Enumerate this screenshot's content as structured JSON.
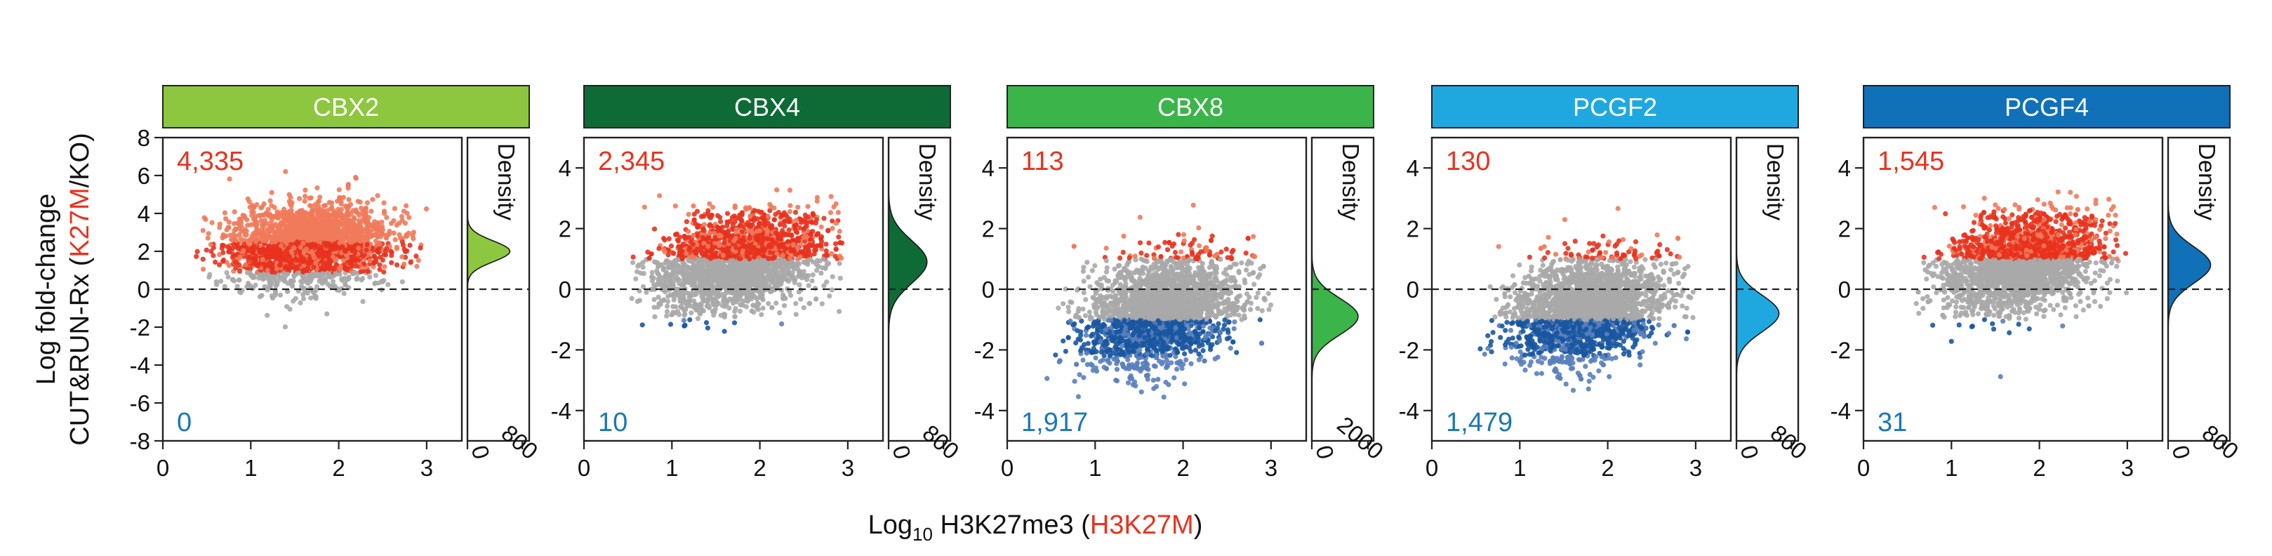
{
  "figure": {
    "ylabel_parts": [
      "Log",
      " fold-change",
      "CUT&RUN-Rx (",
      "K27M",
      "/KO)"
    ],
    "xlabel_parts": [
      "Log",
      "10",
      " H3K27me3 (",
      "H3K27M",
      ")"
    ],
    "density_label": "Density"
  },
  "colors": {
    "up": "#e8321e",
    "up_light": "#f07a5a",
    "down": "#1a56a0",
    "down_light": "#5a7fbd",
    "neutral": "#a8a8a8",
    "up_count_text": "#e8321e",
    "down_count_text": "#1a78b4"
  },
  "chart_data": [
    {
      "type": "scatter",
      "title": "CBX2",
      "title_color": "#8dc63f",
      "title_text_color": "#ffffff",
      "density_color": "#8dc63f",
      "up_count": "4,335",
      "down_count": "0",
      "xlim": [
        0,
        3.4
      ],
      "ylim": [
        -8,
        8
      ],
      "xticks": [
        "0",
        "1",
        "2",
        "3"
      ],
      "xtick_values": [
        0,
        1,
        2,
        3
      ],
      "yticks": [
        "8",
        "6",
        "4",
        "2",
        "0",
        "-2",
        "-4",
        "-6",
        "-8"
      ],
      "ytick_values": [
        8,
        6,
        4,
        2,
        0,
        -2,
        -4,
        -6,
        -8
      ],
      "density_ticks": [
        "0",
        "800"
      ],
      "density_max": 900,
      "density_curve": {
        "mean": 2.0,
        "sd": 0.55,
        "peak": 620
      },
      "point_cloud": {
        "x_center": 1.65,
        "x_spread": 0.45,
        "y_center": 2.3,
        "y_spread": 1.05,
        "x_min": 0.35,
        "x_max": 3.0,
        "slope": 0.25,
        "up_threshold": 0.9,
        "down_threshold": -99,
        "n": 2400
      }
    },
    {
      "type": "scatter",
      "title": "CBX4",
      "title_color": "#0e6b36",
      "title_text_color": "#ffffff",
      "density_color": "#0e6b36",
      "up_count": "2,345",
      "down_count": "10",
      "xlim": [
        0,
        3.4
      ],
      "ylim": [
        -5,
        5
      ],
      "xticks": [
        "0",
        "1",
        "2",
        "3"
      ],
      "xtick_values": [
        0,
        1,
        2,
        3
      ],
      "yticks": [
        "4",
        "2",
        "0",
        "-2",
        "-4"
      ],
      "ytick_values": [
        4,
        2,
        0,
        -2,
        -4
      ],
      "density_ticks": [
        "0",
        "800"
      ],
      "density_max": 900,
      "density_curve": {
        "mean": 0.9,
        "sd": 0.7,
        "peak": 560
      },
      "point_cloud": {
        "x_center": 1.75,
        "x_spread": 0.45,
        "y_center": 0.9,
        "y_spread": 0.75,
        "x_min": 0.5,
        "x_max": 3.0,
        "slope": 0.55,
        "up_threshold": 1.0,
        "down_threshold": -1.0,
        "n": 2600
      }
    },
    {
      "type": "scatter",
      "title": "CBX8",
      "title_color": "#3bb44a",
      "title_text_color": "#ffffff",
      "density_color": "#3bb44a",
      "up_count": "113",
      "down_count": "1,917",
      "xlim": [
        0,
        3.4
      ],
      "ylim": [
        -5,
        5
      ],
      "xticks": [
        "0",
        "1",
        "2",
        "3"
      ],
      "xtick_values": [
        0,
        1,
        2,
        3
      ],
      "yticks": [
        "4",
        "2",
        "0",
        "-2",
        "-4"
      ],
      "ytick_values": [
        4,
        2,
        0,
        -2,
        -4
      ],
      "density_ticks": [
        "0",
        "2000"
      ],
      "density_max": 2200,
      "density_curve": {
        "mean": -0.9,
        "sd": 0.6,
        "peak": 1650
      },
      "point_cloud": {
        "x_center": 1.75,
        "x_spread": 0.42,
        "y_center": -0.7,
        "y_spread": 0.85,
        "x_min": 0.45,
        "x_max": 3.0,
        "slope": 0.6,
        "up_threshold": 1.0,
        "down_threshold": -1.0,
        "n": 2600
      }
    },
    {
      "type": "scatter",
      "title": "PCGF2",
      "title_color": "#1fa8e0",
      "title_text_color": "#ffffff",
      "density_color": "#1fa8e0",
      "up_count": "130",
      "down_count": "1,479",
      "xlim": [
        0,
        3.4
      ],
      "ylim": [
        -5,
        5
      ],
      "xticks": [
        "0",
        "1",
        "2",
        "3"
      ],
      "xtick_values": [
        0,
        1,
        2,
        3
      ],
      "yticks": [
        "4",
        "2",
        "0",
        "-2",
        "-4"
      ],
      "ytick_values": [
        4,
        2,
        0,
        -2,
        -4
      ],
      "density_ticks": [
        "0",
        "800"
      ],
      "density_max": 900,
      "density_curve": {
        "mean": -0.8,
        "sd": 0.6,
        "peak": 620
      },
      "point_cloud": {
        "x_center": 1.75,
        "x_spread": 0.42,
        "y_center": -0.6,
        "y_spread": 0.8,
        "x_min": 0.5,
        "x_max": 3.0,
        "slope": 0.55,
        "up_threshold": 1.0,
        "down_threshold": -1.0,
        "n": 2600
      }
    },
    {
      "type": "scatter",
      "title": "PCGF4",
      "title_color": "#1070b8",
      "title_text_color": "#ffffff",
      "density_color": "#1070b8",
      "up_count": "1,545",
      "down_count": "31",
      "xlim": [
        0,
        3.4
      ],
      "ylim": [
        -5,
        5
      ],
      "xticks": [
        "0",
        "1",
        "2",
        "3"
      ],
      "xtick_values": [
        0,
        1,
        2,
        3
      ],
      "yticks": [
        "4",
        "2",
        "0",
        "-2",
        "-4"
      ],
      "ytick_values": [
        4,
        2,
        0,
        -2,
        -4
      ],
      "density_ticks": [
        "0",
        "800"
      ],
      "density_max": 900,
      "density_curve": {
        "mean": 0.8,
        "sd": 0.6,
        "peak": 620
      },
      "point_cloud": {
        "x_center": 1.8,
        "x_spread": 0.42,
        "y_center": 0.85,
        "y_spread": 0.75,
        "x_min": 0.55,
        "x_max": 3.0,
        "slope": 0.55,
        "up_threshold": 1.0,
        "down_threshold": -1.0,
        "n": 2500
      }
    }
  ]
}
